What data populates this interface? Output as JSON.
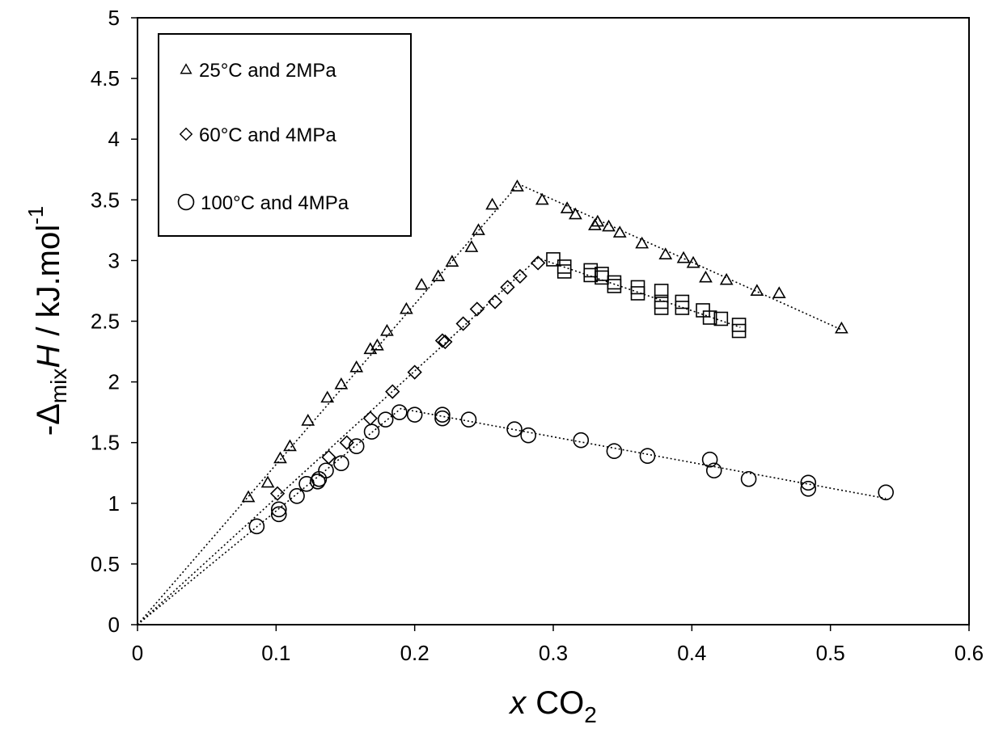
{
  "chart_data": {
    "type": "scatter",
    "title": "",
    "xlabel": {
      "italic": "x",
      "main": "CO",
      "sub": "2"
    },
    "ylabel": {
      "prefix": "-Δ",
      "sub": "mix",
      "italic": "H",
      "suffix": " / kJ.mol",
      "sup": "-1"
    },
    "xlim": [
      0,
      0.6
    ],
    "ylim": [
      0,
      5
    ],
    "x_ticks": [
      "0",
      "0.1",
      "0.2",
      "0.3",
      "0.4",
      "0.5",
      "0.6"
    ],
    "y_ticks": [
      "0",
      "0.5",
      "1",
      "1.5",
      "2",
      "2.5",
      "3",
      "3.5",
      "4",
      "4.5",
      "5"
    ],
    "grid": false,
    "legend_position": "top-left",
    "series": [
      {
        "name": "25°C and 2MPa",
        "marker": "triangle",
        "points": [
          [
            0.08,
            1.05
          ],
          [
            0.094,
            1.17
          ],
          [
            0.103,
            1.37
          ],
          [
            0.11,
            1.47
          ],
          [
            0.123,
            1.68
          ],
          [
            0.137,
            1.87
          ],
          [
            0.147,
            1.98
          ],
          [
            0.158,
            2.12
          ],
          [
            0.168,
            2.27
          ],
          [
            0.173,
            2.3
          ],
          [
            0.18,
            2.42
          ],
          [
            0.194,
            2.6
          ],
          [
            0.205,
            2.8
          ],
          [
            0.217,
            2.87
          ],
          [
            0.227,
            2.99
          ],
          [
            0.241,
            3.11
          ],
          [
            0.246,
            3.25
          ],
          [
            0.256,
            3.46
          ],
          [
            0.274,
            3.61
          ],
          [
            0.292,
            3.5
          ],
          [
            0.31,
            3.43
          ],
          [
            0.316,
            3.38
          ],
          [
            0.33,
            3.29
          ],
          [
            0.332,
            3.32
          ],
          [
            0.34,
            3.28
          ],
          [
            0.348,
            3.23
          ],
          [
            0.364,
            3.14
          ],
          [
            0.381,
            3.05
          ],
          [
            0.394,
            3.02
          ],
          [
            0.401,
            2.98
          ],
          [
            0.41,
            2.86
          ],
          [
            0.425,
            2.84
          ],
          [
            0.447,
            2.75
          ],
          [
            0.463,
            2.73
          ],
          [
            0.508,
            2.44
          ]
        ]
      },
      {
        "name": "60°C and 4MPa",
        "marker": "diamond",
        "points": [
          [
            0.101,
            1.08
          ],
          [
            0.138,
            1.38
          ],
          [
            0.151,
            1.5
          ],
          [
            0.168,
            1.7
          ],
          [
            0.184,
            1.92
          ],
          [
            0.2,
            2.08
          ],
          [
            0.22,
            2.34
          ],
          [
            0.222,
            2.33
          ],
          [
            0.235,
            2.48
          ],
          [
            0.245,
            2.6
          ],
          [
            0.258,
            2.66
          ],
          [
            0.267,
            2.78
          ],
          [
            0.276,
            2.87
          ],
          [
            0.289,
            2.98
          ]
        ]
      },
      {
        "name": "",
        "marker": "square",
        "points": [
          [
            0.3,
            3.01
          ],
          [
            0.308,
            2.95
          ],
          [
            0.308,
            2.91
          ],
          [
            0.327,
            2.92
          ],
          [
            0.327,
            2.88
          ],
          [
            0.335,
            2.89
          ],
          [
            0.335,
            2.86
          ],
          [
            0.344,
            2.82
          ],
          [
            0.344,
            2.79
          ],
          [
            0.361,
            2.78
          ],
          [
            0.361,
            2.73
          ],
          [
            0.378,
            2.75
          ],
          [
            0.378,
            2.66
          ],
          [
            0.378,
            2.61
          ],
          [
            0.393,
            2.66
          ],
          [
            0.393,
            2.61
          ],
          [
            0.408,
            2.59
          ],
          [
            0.413,
            2.53
          ],
          [
            0.421,
            2.52
          ],
          [
            0.434,
            2.47
          ],
          [
            0.434,
            2.42
          ]
        ]
      },
      {
        "name": "100°C and 4MPa",
        "marker": "circle",
        "points": [
          [
            0.086,
            0.81
          ],
          [
            0.102,
            0.95
          ],
          [
            0.102,
            0.91
          ],
          [
            0.115,
            1.06
          ],
          [
            0.122,
            1.16
          ],
          [
            0.13,
            1.18
          ],
          [
            0.131,
            1.2
          ],
          [
            0.136,
            1.27
          ],
          [
            0.147,
            1.33
          ],
          [
            0.158,
            1.47
          ],
          [
            0.169,
            1.59
          ],
          [
            0.179,
            1.69
          ],
          [
            0.189,
            1.75
          ],
          [
            0.2,
            1.73
          ],
          [
            0.22,
            1.73
          ],
          [
            0.22,
            1.7
          ],
          [
            0.239,
            1.69
          ],
          [
            0.272,
            1.61
          ],
          [
            0.282,
            1.56
          ],
          [
            0.32,
            1.52
          ],
          [
            0.344,
            1.43
          ],
          [
            0.368,
            1.39
          ],
          [
            0.413,
            1.36
          ],
          [
            0.416,
            1.27
          ],
          [
            0.441,
            1.2
          ],
          [
            0.484,
            1.17
          ],
          [
            0.484,
            1.12
          ],
          [
            0.54,
            1.09
          ]
        ]
      }
    ],
    "trend_lines": [
      [
        [
          0.0,
          0.0
        ],
        [
          0.275,
          3.63
        ],
        [
          0.508,
          2.43
        ]
      ],
      [
        [
          0.0,
          0.0
        ],
        [
          0.289,
          3.02
        ],
        [
          0.435,
          2.45
        ]
      ],
      [
        [
          0.0,
          0.0
        ],
        [
          0.19,
          1.78
        ],
        [
          0.54,
          1.04
        ]
      ]
    ]
  }
}
